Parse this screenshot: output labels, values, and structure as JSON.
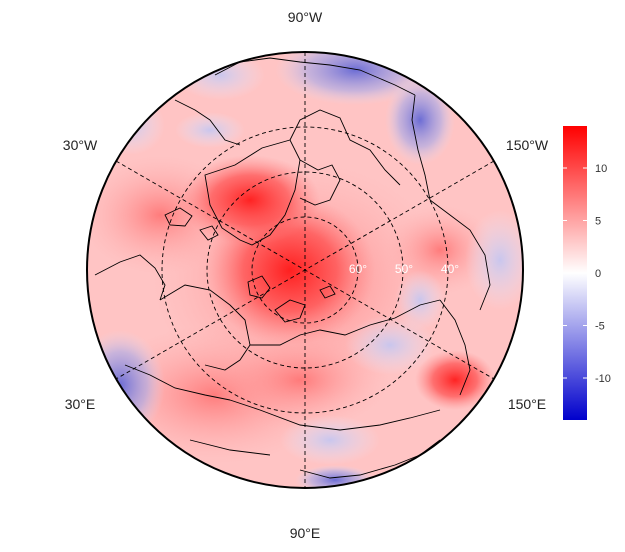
{
  "map": {
    "projection": "north-polar-stereographic",
    "longitude_labels": {
      "top": "90°W",
      "upper_left": "30°W",
      "upper_right": "150°W",
      "lower_left": "30°E",
      "lower_right": "150°E",
      "bottom": "90°E"
    },
    "latitude_labels": [
      "60°",
      "50°",
      "40°"
    ],
    "gridlines": "dashed",
    "basemap": "coastlines and country borders",
    "colors": {
      "warm": "#ff0000",
      "cool": "#0000cc",
      "neutral": "#ffffff",
      "gridline": "#000000",
      "coastline": "#000000"
    }
  },
  "colorbar": {
    "min": -14,
    "max": 14,
    "ticks": [
      10,
      5,
      0,
      -5,
      -10
    ],
    "tick_labels": [
      "10",
      "5",
      "0",
      "-5",
      "-10"
    ],
    "colors": [
      "#ff0000",
      "#ffffff",
      "#0000cc"
    ]
  }
}
